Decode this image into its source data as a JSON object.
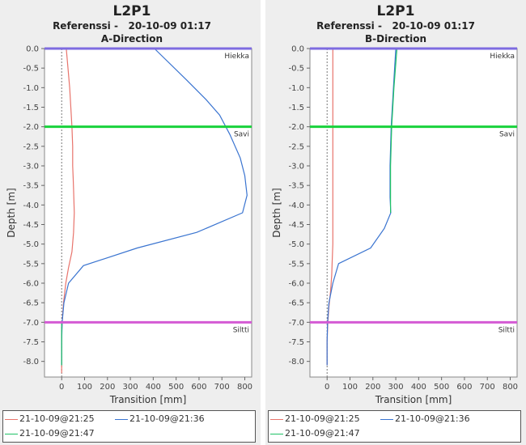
{
  "panels": [
    {
      "title": "L2P1",
      "subtitle": "Referenssi -   20-10-09 01:17",
      "direction": "A-Direction",
      "legend": [
        {
          "label": "21-10-09@21:25",
          "color": "#e8746c"
        },
        {
          "label": "21-10-09@21:36",
          "color": "#3a74d0"
        },
        {
          "label": "21-10-09@21:47",
          "color": "#1fc266"
        }
      ]
    },
    {
      "title": "L2P1",
      "subtitle": "Referenssi -   20-10-09 01:17",
      "direction": "B-Direction",
      "legend": [
        {
          "label": "21-10-09@21:25",
          "color": "#e8746c"
        },
        {
          "label": "21-10-09@21:36",
          "color": "#3a74d0"
        },
        {
          "label": "21-10-09@21:47",
          "color": "#1fc266"
        }
      ]
    }
  ],
  "chart_data": [
    {
      "type": "line",
      "title": "L2P1",
      "subtitle": "Referenssi -   20-10-09 01:17",
      "direction": "A-Direction",
      "xlabel": "Transition [mm]",
      "ylabel": "Depth [m]",
      "xlim": [
        -75,
        830
      ],
      "ylim": [
        -8.4,
        0
      ],
      "xticks": [
        0,
        100,
        200,
        300,
        400,
        500,
        600,
        700,
        800
      ],
      "yticks": [
        0,
        -0.5,
        -1,
        -1.5,
        -2,
        -2.5,
        -3,
        -3.5,
        -4,
        -4.5,
        -5,
        -5.5,
        -6,
        -6.5,
        -7,
        -7.5,
        -8
      ],
      "ytick_labels": [
        "0.0",
        "-0.5",
        "-1.0",
        "-1.5",
        "-2.0",
        "-2.5",
        "-3.0",
        "-3.5",
        "-4.0",
        "-4.5",
        "-5.0",
        "-5.5",
        "-6.0",
        "-6.5",
        "-7.0",
        "-7.5",
        "-8.0"
      ],
      "xtick_labels": [
        "0",
        "100",
        "200",
        "300",
        "400",
        "500",
        "600",
        "700",
        "800"
      ],
      "layers": [
        {
          "name": "Hiekka",
          "depth": 0,
          "color": "#7d6be0"
        },
        {
          "name": "Savi",
          "depth": -2,
          "color": "#19d23c"
        },
        {
          "name": "Siltti",
          "depth": -7,
          "color": "#d45ad4"
        }
      ],
      "series": [
        {
          "name": "21-10-09@21:25",
          "color": "#e8746c",
          "x": [
            20,
            35,
            45,
            48,
            48,
            50,
            52,
            55,
            52,
            45,
            30,
            18,
            8,
            2,
            0,
            0,
            0,
            0
          ],
          "y": [
            0,
            -1,
            -2,
            -2.5,
            -3,
            -3.3,
            -3.6,
            -4.2,
            -4.7,
            -5.2,
            -5.6,
            -6,
            -6.5,
            -7,
            -7.3,
            -7.7,
            -8.1,
            -8.3
          ]
        },
        {
          "name": "21-10-09@21:36",
          "color": "#3a74d0",
          "x": [
            405,
            545,
            630,
            690,
            735,
            780,
            800,
            810,
            790,
            590,
            330,
            95,
            30,
            10,
            2,
            0,
            0
          ],
          "y": [
            0,
            -0.8,
            -1.3,
            -1.7,
            -2.2,
            -2.8,
            -3.25,
            -3.75,
            -4.2,
            -4.7,
            -5.1,
            -5.55,
            -6,
            -6.5,
            -7,
            -7.5,
            -8.1
          ]
        },
        {
          "name": "21-10-09@21:47",
          "color": "#1fc266",
          "x": [
            0,
            0,
            0,
            0
          ],
          "y": [
            -7,
            -7.5,
            -8,
            -8.1
          ]
        }
      ]
    },
    {
      "type": "line",
      "title": "L2P1",
      "subtitle": "Referenssi -   20-10-09 01:17",
      "direction": "B-Direction",
      "xlabel": "Transition [mm]",
      "ylabel": "Depth [m]",
      "xlim": [
        -75,
        830
      ],
      "ylim": [
        -8.4,
        0
      ],
      "xticks": [
        0,
        100,
        200,
        300,
        400,
        500,
        600,
        700,
        800
      ],
      "yticks": [
        0,
        -0.5,
        -1,
        -1.5,
        -2,
        -2.5,
        -3,
        -3.5,
        -4,
        -4.5,
        -5,
        -5.5,
        -6,
        -6.5,
        -7,
        -7.5,
        -8
      ],
      "ytick_labels": [
        "0.0",
        "-0.5",
        "-1.0",
        "-1.5",
        "-2.0",
        "-2.5",
        "-3.0",
        "-3.5",
        "-4.0",
        "-4.5",
        "-5.0",
        "-5.5",
        "-6.0",
        "-6.5",
        "-7.0",
        "-7.5",
        "-8.0"
      ],
      "xtick_labels": [
        "0",
        "100",
        "200",
        "300",
        "400",
        "500",
        "600",
        "700",
        "800"
      ],
      "layers": [
        {
          "name": "Hiekka",
          "depth": 0,
          "color": "#7d6be0"
        },
        {
          "name": "Savi",
          "depth": -2,
          "color": "#19d23c"
        },
        {
          "name": "Siltti",
          "depth": -7,
          "color": "#d45ad4"
        }
      ],
      "series": [
        {
          "name": "21-10-09@21:25",
          "color": "#e8746c",
          "x": [
            25,
            25,
            25,
            25,
            25,
            25,
            22,
            20,
            15,
            8,
            3,
            0,
            0
          ],
          "y": [
            0,
            -1,
            -2,
            -3,
            -4,
            -5,
            -5.5,
            -5.8,
            -6.2,
            -6.6,
            -7,
            -7.5,
            -8.1
          ]
        },
        {
          "name": "21-10-09@21:36",
          "color": "#3a74d0",
          "x": [
            300,
            290,
            280,
            275,
            275,
            278,
            250,
            190,
            50,
            25,
            8,
            2,
            0,
            0
          ],
          "y": [
            0,
            -1,
            -2,
            -3,
            -3.8,
            -4.2,
            -4.6,
            -5.1,
            -5.5,
            -6,
            -6.5,
            -7,
            -7.5,
            -8.1
          ]
        },
        {
          "name": "21-10-09@21:47",
          "color": "#1fc266",
          "x": [
            305,
            292,
            282,
            277,
            277,
            277
          ],
          "y": [
            0,
            -1,
            -2,
            -3,
            -3.8,
            -4.2
          ]
        }
      ]
    }
  ]
}
